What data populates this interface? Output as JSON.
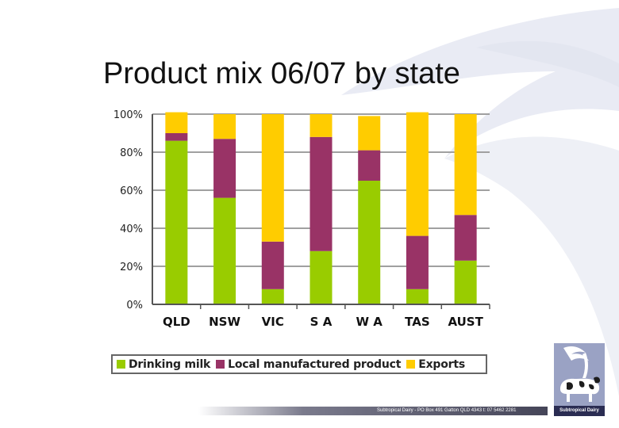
{
  "slide": {
    "title": "Product mix 06/07 by state",
    "footer": "Subtropical Dairy - PO Box 491 Gatton QLD 4343 t: 07 5462 2281",
    "logo_label": "Subtropical Dairy",
    "logo_icon": "cow-palm-logo-icon"
  },
  "chart_data": {
    "type": "bar",
    "stacked": true,
    "categories": [
      "QLD",
      "NSW",
      "VIC",
      "S A",
      "W A",
      "TAS",
      "AUST"
    ],
    "series": [
      {
        "name": "Drinking milk",
        "color": "#99cc00",
        "values": [
          86,
          56,
          8,
          28,
          65,
          8,
          23
        ]
      },
      {
        "name": "Local manufactured product",
        "color": "#993366",
        "values": [
          4,
          31,
          25,
          60,
          16,
          28,
          24
        ]
      },
      {
        "name": "Exports",
        "color": "#ffcc00",
        "values": [
          11,
          13,
          67,
          12,
          18,
          65,
          53
        ]
      }
    ],
    "ylim": [
      0,
      100
    ],
    "yticks": [
      "0%",
      "20%",
      "40%",
      "60%",
      "80%",
      "100%"
    ],
    "grid": true,
    "legend_position": "bottom"
  }
}
